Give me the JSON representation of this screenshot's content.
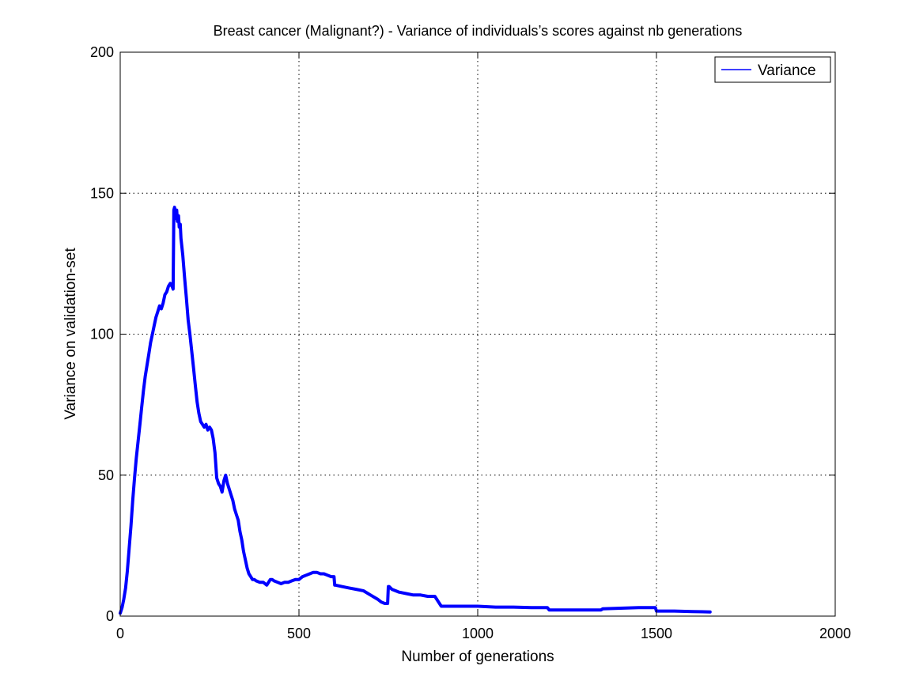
{
  "chart_data": {
    "type": "line",
    "title": "Breast cancer (Malignant?) - Variance of individuals’s scores against nb generations",
    "xlabel": "Number of generations",
    "ylabel": "Variance on validation-set",
    "xlim": [
      0,
      2000
    ],
    "ylim": [
      0,
      200
    ],
    "xticks": [
      0,
      500,
      1000,
      1500,
      2000
    ],
    "yticks": [
      0,
      50,
      100,
      150,
      200
    ],
    "grid": true,
    "legend_position": "top-right",
    "colors": {
      "series": "#0000ff",
      "axes": "#000000",
      "grid": "#000000"
    },
    "series": [
      {
        "name": "Variance",
        "x": [
          0,
          5,
          10,
          15,
          20,
          25,
          30,
          35,
          40,
          45,
          50,
          55,
          60,
          65,
          70,
          75,
          80,
          85,
          90,
          95,
          100,
          105,
          110,
          115,
          120,
          125,
          130,
          135,
          140,
          145,
          148,
          150,
          152,
          155,
          158,
          160,
          163,
          165,
          168,
          170,
          175,
          180,
          185,
          190,
          195,
          200,
          205,
          210,
          215,
          220,
          225,
          230,
          235,
          240,
          245,
          250,
          255,
          260,
          265,
          270,
          275,
          280,
          285,
          290,
          295,
          300,
          305,
          310,
          315,
          320,
          325,
          330,
          335,
          340,
          345,
          350,
          355,
          360,
          365,
          370,
          375,
          380,
          390,
          400,
          410,
          420,
          425,
          430,
          440,
          450,
          460,
          470,
          480,
          490,
          500,
          510,
          520,
          530,
          540,
          550,
          560,
          570,
          580,
          590,
          598,
          600,
          602,
          620,
          640,
          660,
          680,
          700,
          720,
          730,
          740,
          745,
          748,
          750,
          752,
          760,
          770,
          780,
          800,
          820,
          840,
          860,
          880,
          898,
          900,
          902,
          950,
          1000,
          1050,
          1100,
          1150,
          1195,
          1200,
          1205,
          1250,
          1300,
          1345,
          1350,
          1400,
          1450,
          1497,
          1500,
          1503,
          1550,
          1600,
          1650
        ],
        "values": [
          1,
          3,
          6,
          10,
          16,
          24,
          32,
          41,
          49,
          56,
          62,
          68,
          74,
          80,
          85,
          89,
          93,
          97,
          100,
          103,
          106,
          108,
          110,
          109,
          111,
          114,
          115,
          117,
          118,
          117,
          116,
          144,
          145,
          141,
          144,
          140,
          142,
          138,
          139,
          134,
          128,
          120,
          113,
          105,
          100,
          94,
          88,
          82,
          76,
          72,
          69,
          68,
          67,
          68,
          66,
          67,
          66,
          63,
          58,
          49,
          47,
          46,
          44,
          48,
          50,
          47,
          45,
          43,
          41,
          38,
          36,
          34,
          30,
          27,
          23,
          20,
          17,
          15,
          14,
          13,
          13,
          12.5,
          12,
          12,
          11,
          13,
          13,
          12.5,
          12,
          11.5,
          12,
          12,
          12.5,
          13,
          13,
          14,
          14.5,
          15,
          15.5,
          15.5,
          15,
          15,
          14.5,
          14,
          14,
          11,
          11,
          10.5,
          10,
          9.5,
          9,
          7.5,
          6,
          5,
          4.5,
          4.5,
          4.5,
          10.5,
          10.5,
          9.5,
          9,
          8.5,
          8,
          7.5,
          7.5,
          7,
          7,
          3.5,
          3.5,
          3.5,
          3.5,
          3.5,
          3.2,
          3.2,
          3,
          3,
          2.2,
          2.2,
          2.2,
          2.2,
          2.2,
          2.6,
          2.8,
          3,
          3,
          1.8,
          1.8,
          1.8,
          1.6,
          1.5
        ]
      }
    ]
  }
}
